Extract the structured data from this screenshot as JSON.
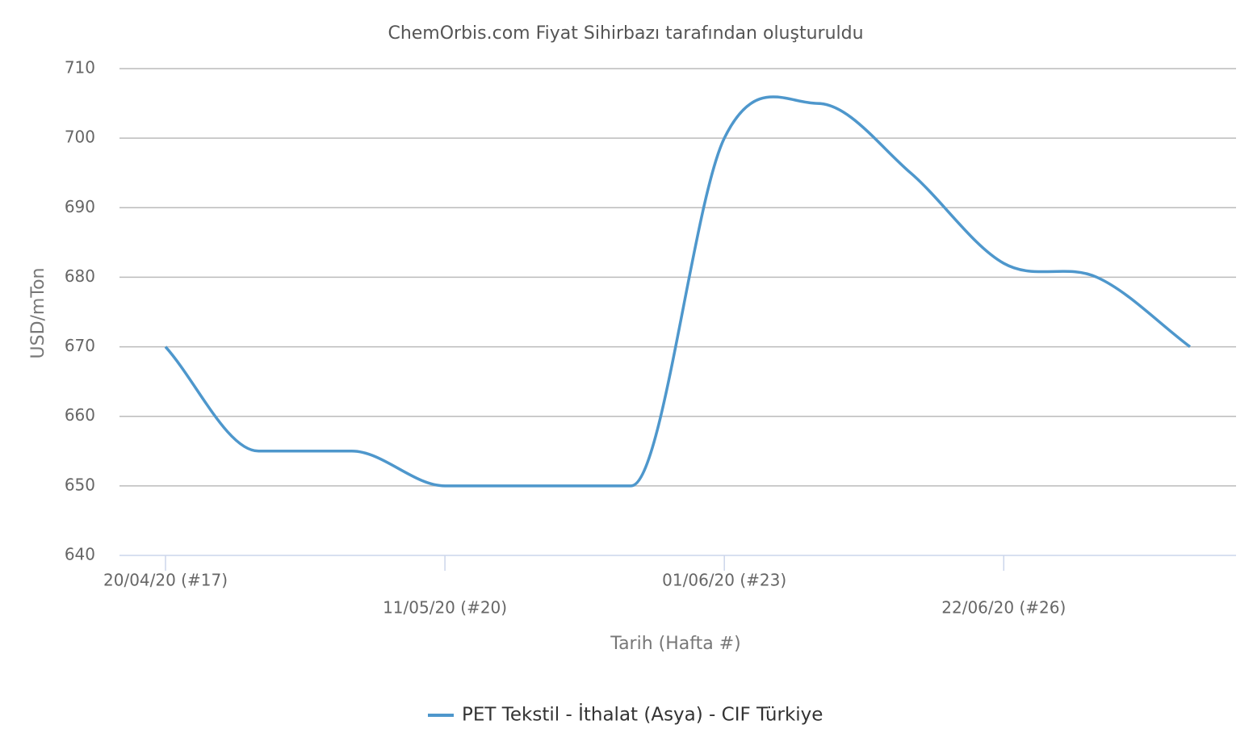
{
  "chart_data": {
    "type": "line",
    "title": "ChemOrbis.com Fiyat Sihirbazı tarafından oluşturuldu",
    "x_label": "Tarih (Hafta #)",
    "y_label": "USD/mTon",
    "categories": [
      "20/04/20 (#17)",
      null,
      null,
      "11/05/20 (#20)",
      null,
      null,
      "01/06/20 (#23)",
      null,
      null,
      "22/06/20 (#26)",
      null,
      null
    ],
    "series": [
      {
        "name": "PET Tekstil - İthalat (Asya)  - CIF Türkiye",
        "color": "#4e97cc",
        "values": [
          670,
          655,
          655,
          650,
          650,
          650,
          700,
          705,
          695,
          682,
          680,
          670
        ]
      }
    ],
    "ylim": [
      640,
      710
    ],
    "yticks": [
      640,
      650,
      660,
      670,
      680,
      690,
      700,
      710
    ],
    "grid": true,
    "legend": "bottom"
  }
}
